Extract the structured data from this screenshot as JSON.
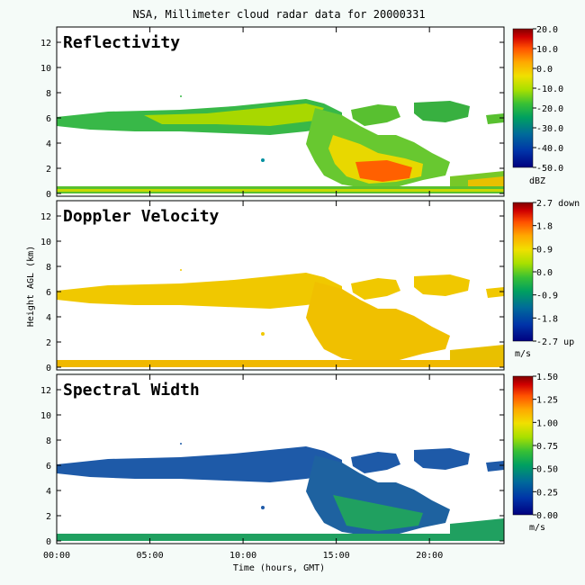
{
  "title": "NSA, Millimeter cloud radar data for 20000331",
  "ylabel": "Height AGL (km)",
  "xlabel": "Time (hours, GMT)",
  "x_ticks": [
    "00:00",
    "05:00",
    "10:00",
    "15:00",
    "20:00"
  ],
  "y_ticks": [
    "0",
    "2",
    "4",
    "6",
    "8",
    "10",
    "12"
  ],
  "colors": {
    "background": "#f5fbf8",
    "panel_background": "#ffffff",
    "reflectivity_scale": [
      "#00007f",
      "#0034a8",
      "#006a9a",
      "#00a060",
      "#38c034",
      "#a8e000",
      "#f0e000",
      "#ffa800",
      "#ff5000",
      "#d00000",
      "#800000"
    ],
    "velocity_fill": "#f0c800",
    "velocity_accent": "#e8a800",
    "width_fill": "#1e5aa8",
    "width_accent": "#20a060"
  },
  "chart_data": [
    {
      "type": "heatmap",
      "title": "Reflectivity",
      "x_ticks": [
        "00:00",
        "05:00",
        "10:00",
        "15:00",
        "20:00"
      ],
      "xlim": [
        0,
        24
      ],
      "ylim": [
        0,
        13
      ],
      "colorbar": {
        "ticks": [
          "20.0",
          "10.0",
          "0.0",
          "-10.0",
          "-20.0",
          "-30.0",
          "-40.0",
          "-50.0"
        ],
        "unit": "dBZ",
        "range": [
          -50,
          20
        ]
      }
    },
    {
      "type": "heatmap",
      "title": "Doppler Velocity",
      "x_ticks": [
        "00:00",
        "05:00",
        "10:00",
        "15:00",
        "20:00"
      ],
      "xlim": [
        0,
        24
      ],
      "ylim": [
        0,
        13
      ],
      "colorbar": {
        "ticks": [
          "2.7 down",
          "1.8",
          "0.9",
          "0.0",
          "-0.9",
          "-1.8",
          "-2.7 up"
        ],
        "unit": "m/s",
        "range": [
          -2.7,
          2.7
        ]
      }
    },
    {
      "type": "heatmap",
      "title": "Spectral Width",
      "x_ticks": [
        "00:00",
        "05:00",
        "10:00",
        "15:00",
        "20:00"
      ],
      "xlim": [
        0,
        24
      ],
      "ylim": [
        0,
        13
      ],
      "colorbar": {
        "ticks": [
          "1.50",
          "1.25",
          "1.00",
          "0.75",
          "0.50",
          "0.25",
          "0.00"
        ],
        "unit": "m/s",
        "range": [
          0,
          1.5
        ]
      }
    }
  ]
}
